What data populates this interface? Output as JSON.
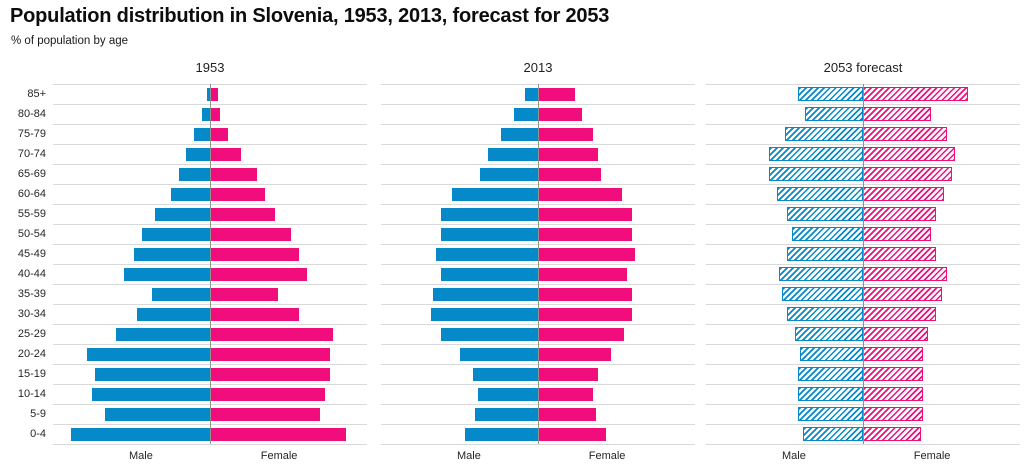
{
  "chart_data": {
    "type": "bar",
    "subtype": "population_pyramid",
    "title": "Population distribution in Slovenia, 1953, 2013, forecast for 2053",
    "subtitle": "% of population by age",
    "categories": [
      "85+",
      "80-84",
      "75-79",
      "70-74",
      "65-69",
      "60-64",
      "55-59",
      "50-54",
      "45-49",
      "40-44",
      "35-39",
      "30-34",
      "25-29",
      "20-24",
      "15-19",
      "10-14",
      "5-9",
      "0-4"
    ],
    "unit": "% of total population per age-sex group",
    "x_axis": {
      "max_percent_per_side": 6,
      "tick_labels_visible": false
    },
    "grid": "horizontal",
    "legend_position": "none",
    "colors": {
      "male": "#0689c9",
      "female": "#f20d7d",
      "gridline": "#d9d9d9",
      "center_axis": "#909090"
    },
    "panels": [
      {
        "title": "1953",
        "bar_style": "solid",
        "series": [
          {
            "name": "Male",
            "side": "left",
            "values": [
              0.1,
              0.3,
              0.6,
              0.9,
              1.2,
              1.5,
              2.1,
              2.6,
              2.9,
              3.3,
              2.2,
              2.8,
              3.6,
              4.7,
              4.4,
              4.5,
              4.0,
              5.3
            ]
          },
          {
            "name": "Female",
            "side": "right",
            "values": [
              0.3,
              0.4,
              0.7,
              1.2,
              1.8,
              2.1,
              2.5,
              3.1,
              3.4,
              3.7,
              2.6,
              3.4,
              4.7,
              4.6,
              4.6,
              4.4,
              4.2,
              5.2
            ]
          }
        ]
      },
      {
        "title": "2013",
        "bar_style": "solid",
        "series": [
          {
            "name": "Male",
            "side": "left",
            "values": [
              0.5,
              0.9,
              1.4,
              1.9,
              2.2,
              3.3,
              3.7,
              3.7,
              3.9,
              3.7,
              4.0,
              4.1,
              3.7,
              3.0,
              2.5,
              2.3,
              2.4,
              2.8
            ]
          },
          {
            "name": "Female",
            "side": "right",
            "values": [
              1.4,
              1.7,
              2.1,
              2.3,
              2.4,
              3.2,
              3.6,
              3.6,
              3.7,
              3.4,
              3.6,
              3.6,
              3.3,
              2.8,
              2.3,
              2.1,
              2.2,
              2.6
            ]
          }
        ]
      },
      {
        "title": "2053 forecast",
        "bar_style": "hatched",
        "series": [
          {
            "name": "Male",
            "side": "left",
            "values": [
              2.5,
              2.2,
              3.0,
              3.6,
              3.6,
              3.3,
              2.9,
              2.7,
              2.9,
              3.2,
              3.1,
              2.9,
              2.6,
              2.4,
              2.5,
              2.5,
              2.5,
              2.3
            ]
          },
          {
            "name": "Female",
            "side": "right",
            "values": [
              4.0,
              2.6,
              3.2,
              3.5,
              3.4,
              3.1,
              2.8,
              2.6,
              2.8,
              3.2,
              3.0,
              2.8,
              2.5,
              2.3,
              2.3,
              2.3,
              2.3,
              2.2
            ]
          }
        ]
      }
    ]
  }
}
